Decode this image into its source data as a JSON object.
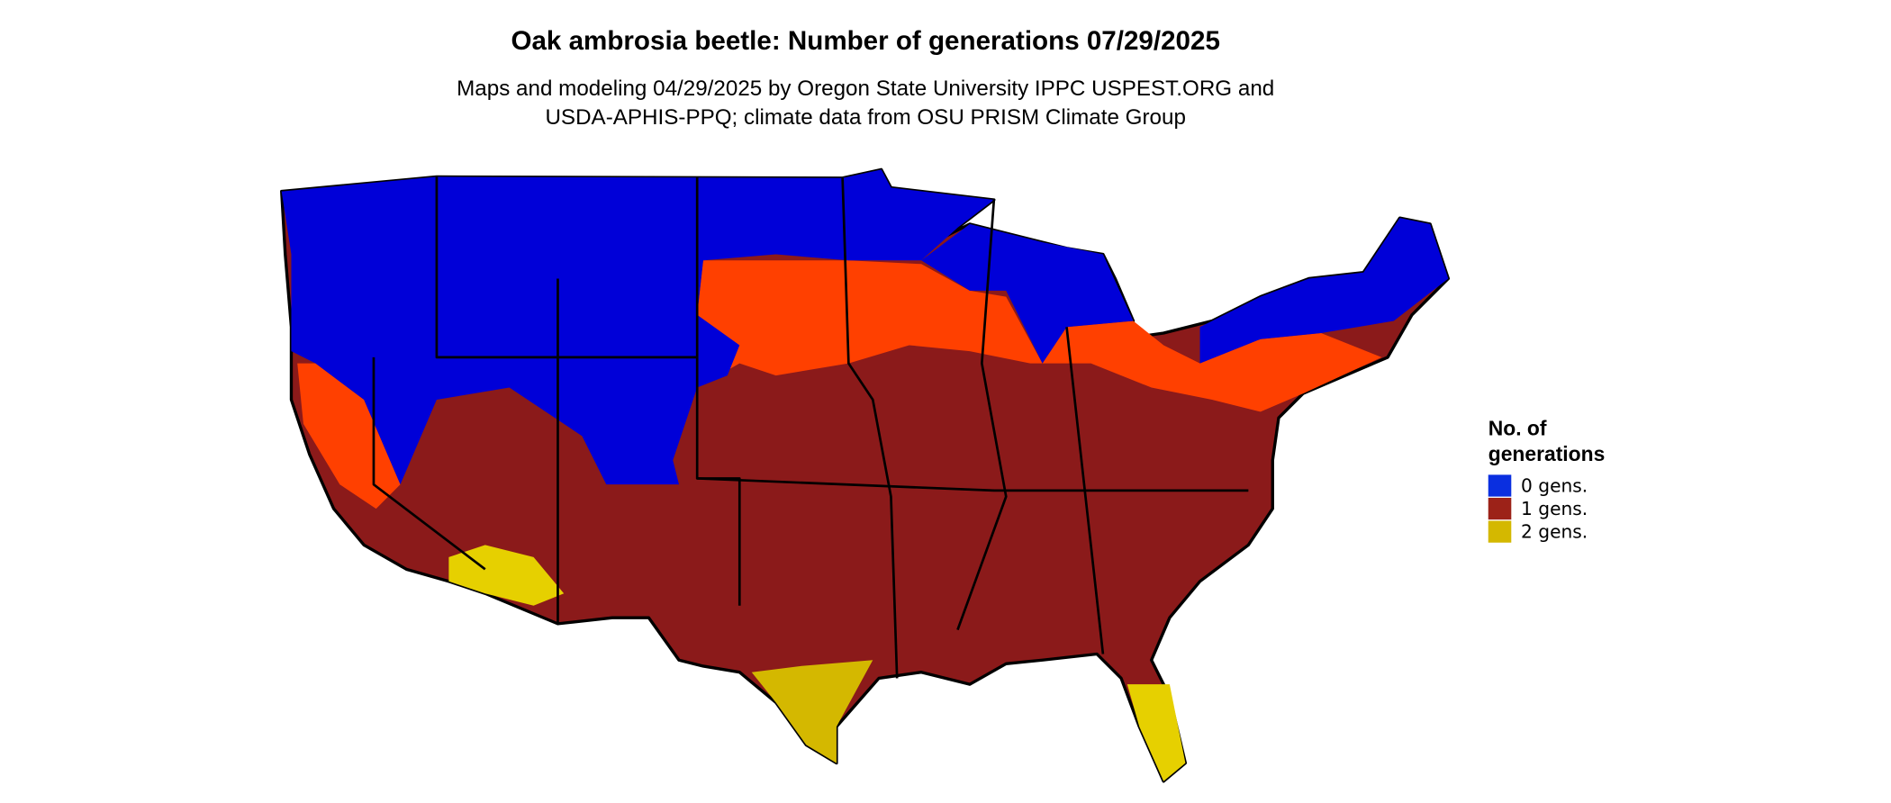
{
  "title": "Oak ambrosia beetle: Number of generations 07/29/2025",
  "subtitle": [
    "Maps and modeling 04/29/2025 by Oregon State University IPPC USPEST.ORG and",
    "USDA-APHIS-PPQ; climate data from OSU PRISM Climate Group"
  ],
  "legend": {
    "title": [
      "No. of",
      "generations"
    ],
    "items": [
      {
        "label": "0 gens.",
        "color": "#0a2fe0"
      },
      {
        "label": "1 gens.",
        "color": "#9c2218"
      },
      {
        "label": "2 gens.",
        "color": "#d4b800"
      }
    ]
  }
}
